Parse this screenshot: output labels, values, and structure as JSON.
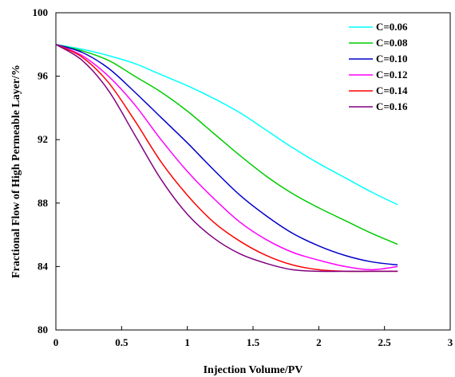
{
  "chart_data": {
    "type": "line",
    "title": "",
    "xlabel": "Injection Volume/PV",
    "ylabel": "Fractional Flow of High Permeable Layer/%",
    "xlim": [
      0,
      3
    ],
    "ylim": [
      80,
      100
    ],
    "x_ticks": [
      "0",
      "0.5",
      "1",
      "1.5",
      "2",
      "2.5",
      "3"
    ],
    "y_ticks": [
      "80",
      "84",
      "88",
      "92",
      "96",
      "100"
    ],
    "grid": false,
    "legend_position": "top-right",
    "series": [
      {
        "name": "C=0.06",
        "color": "#00ffff",
        "points": [
          [
            0,
            98
          ],
          [
            0.2,
            97.7
          ],
          [
            0.4,
            97.3
          ],
          [
            0.6,
            96.8
          ],
          [
            0.8,
            96.1
          ],
          [
            1.0,
            95.4
          ],
          [
            1.2,
            94.6
          ],
          [
            1.4,
            93.7
          ],
          [
            1.6,
            92.6
          ],
          [
            1.8,
            91.5
          ],
          [
            2.0,
            90.5
          ],
          [
            2.2,
            89.6
          ],
          [
            2.4,
            88.7
          ],
          [
            2.6,
            87.9
          ]
        ]
      },
      {
        "name": "C=0.08",
        "color": "#00cc00",
        "points": [
          [
            0,
            98
          ],
          [
            0.2,
            97.6
          ],
          [
            0.4,
            97
          ],
          [
            0.6,
            96
          ],
          [
            0.8,
            95
          ],
          [
            1.0,
            93.8
          ],
          [
            1.2,
            92.4
          ],
          [
            1.4,
            91
          ],
          [
            1.6,
            89.7
          ],
          [
            1.8,
            88.6
          ],
          [
            2.0,
            87.7
          ],
          [
            2.2,
            86.9
          ],
          [
            2.4,
            86.1
          ],
          [
            2.6,
            85.4
          ]
        ]
      },
      {
        "name": "C=0.10",
        "color": "#0000cc",
        "points": [
          [
            0,
            98
          ],
          [
            0.2,
            97.5
          ],
          [
            0.4,
            96.5
          ],
          [
            0.6,
            95
          ],
          [
            0.8,
            93.4
          ],
          [
            1.0,
            91.8
          ],
          [
            1.2,
            90.1
          ],
          [
            1.4,
            88.5
          ],
          [
            1.6,
            87.2
          ],
          [
            1.8,
            86.1
          ],
          [
            2.0,
            85.3
          ],
          [
            2.2,
            84.7
          ],
          [
            2.4,
            84.3
          ],
          [
            2.6,
            84.1
          ]
        ]
      },
      {
        "name": "C=0.12",
        "color": "#ff00ff",
        "points": [
          [
            0,
            98
          ],
          [
            0.2,
            97.3
          ],
          [
            0.4,
            96
          ],
          [
            0.6,
            94.2
          ],
          [
            0.8,
            92
          ],
          [
            1.0,
            90
          ],
          [
            1.2,
            88.3
          ],
          [
            1.4,
            86.8
          ],
          [
            1.6,
            85.7
          ],
          [
            1.8,
            84.9
          ],
          [
            2.0,
            84.4
          ],
          [
            2.2,
            84
          ],
          [
            2.4,
            83.8
          ],
          [
            2.6,
            84
          ]
        ]
      },
      {
        "name": "C=0.14",
        "color": "#ff0000",
        "points": [
          [
            0,
            98
          ],
          [
            0.2,
            97.2
          ],
          [
            0.4,
            95.6
          ],
          [
            0.6,
            93.2
          ],
          [
            0.8,
            90.6
          ],
          [
            1.0,
            88.5
          ],
          [
            1.2,
            86.8
          ],
          [
            1.4,
            85.6
          ],
          [
            1.6,
            84.7
          ],
          [
            1.8,
            84.1
          ],
          [
            2.0,
            83.8
          ],
          [
            2.2,
            83.7
          ],
          [
            2.4,
            83.7
          ],
          [
            2.6,
            83.7
          ]
        ]
      },
      {
        "name": "C=0.16",
        "color": "#800080",
        "points": [
          [
            0,
            98
          ],
          [
            0.2,
            97
          ],
          [
            0.4,
            95.1
          ],
          [
            0.6,
            92.3
          ],
          [
            0.8,
            89.5
          ],
          [
            1.0,
            87.3
          ],
          [
            1.2,
            85.8
          ],
          [
            1.4,
            84.8
          ],
          [
            1.6,
            84.2
          ],
          [
            1.8,
            83.8
          ],
          [
            2.0,
            83.7
          ],
          [
            2.2,
            83.7
          ],
          [
            2.4,
            83.7
          ],
          [
            2.6,
            83.7
          ]
        ]
      }
    ]
  }
}
